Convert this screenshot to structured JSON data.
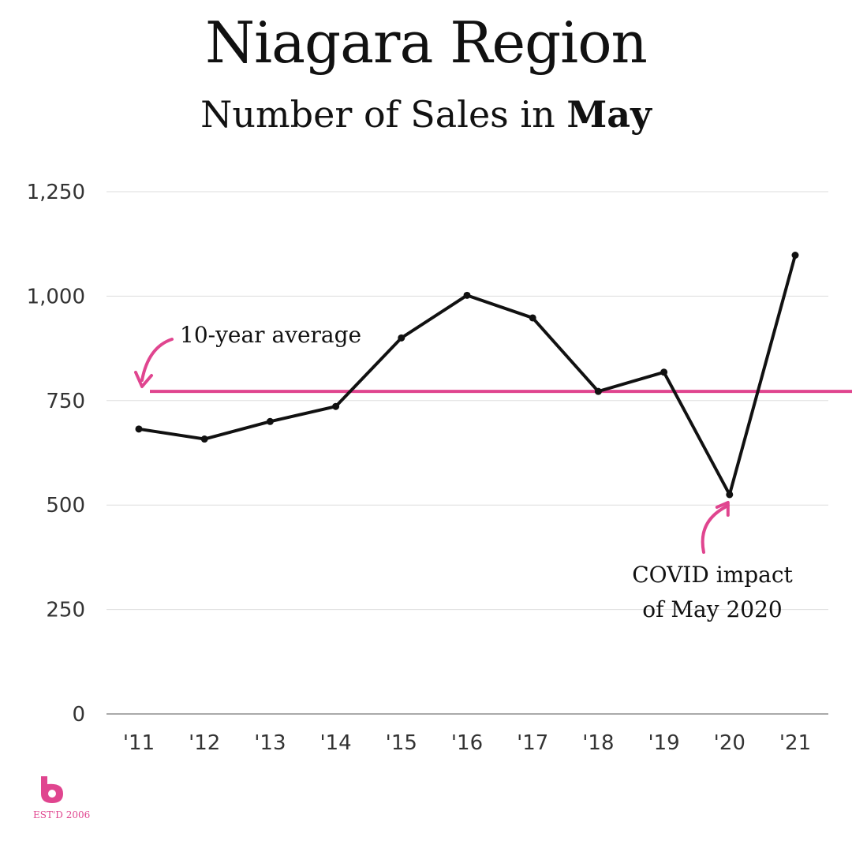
{
  "header": {
    "title": "Niagara Region",
    "subtitle_prefix": "Number of Sales in ",
    "subtitle_bold": "May"
  },
  "colors": {
    "accent": "#e0458f",
    "line": "#111111",
    "grid": "#dddddd"
  },
  "logo": {
    "icon": "b-logo-icon",
    "text": "EST'D 2006"
  },
  "chart_data": {
    "type": "line",
    "title": "Niagara Region",
    "subtitle": "Number of Sales in May",
    "xlabel": "",
    "ylabel": "",
    "categories": [
      "'11",
      "'12",
      "'13",
      "'14",
      "'15",
      "'16",
      "'17",
      "'18",
      "'19",
      "'20",
      "'21"
    ],
    "series": [
      {
        "values": [
          682,
          658,
          700,
          736,
          900,
          1002,
          948,
          772,
          818,
          525,
          1098
        ]
      }
    ],
    "ylim": [
      0,
      1250
    ],
    "yticks": [
      "0",
      "250",
      "500",
      "750",
      "1,000",
      "1,250"
    ],
    "ytick_values": [
      0,
      250,
      500,
      750,
      1000,
      1250
    ],
    "grid": true,
    "reference_line": {
      "value": 772,
      "label": "10-year average"
    },
    "annotations": [
      {
        "category": "'20",
        "line1": "COVID impact",
        "line2": "of May 2020"
      }
    ]
  }
}
